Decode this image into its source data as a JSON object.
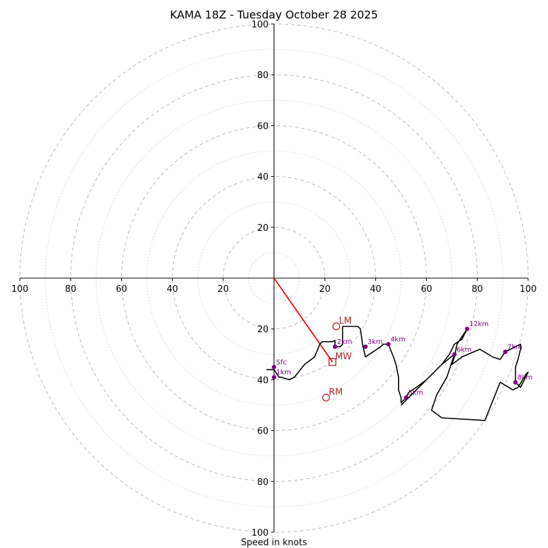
{
  "chart_data": {
    "type": "hodograph",
    "title": "KAMA 18Z - Tuesday October 28 2025",
    "xlabel": "Speed in knots",
    "u_range": [
      -100,
      100
    ],
    "v_range": [
      -100,
      100
    ],
    "tick_labels_x": [
      "100",
      "80",
      "60",
      "40",
      "20",
      "20",
      "40",
      "60",
      "80",
      "100"
    ],
    "tick_values_x": [
      -100,
      -80,
      -60,
      -40,
      -20,
      20,
      40,
      60,
      80,
      100
    ],
    "tick_labels_y": [
      "100",
      "80",
      "60",
      "40",
      "20",
      "20",
      "40",
      "60",
      "80",
      "100"
    ],
    "tick_values_y": [
      100,
      80,
      60,
      40,
      20,
      -20,
      -40,
      -60,
      -80,
      -100
    ],
    "rings_dashed": [
      20,
      40,
      60,
      80,
      100
    ],
    "rings_dotted": [
      10,
      30,
      50,
      70,
      90
    ],
    "colors": {
      "hodograph": "#000000",
      "height_marker": "#800080",
      "storm_motion": "#b22222",
      "mean_wind_vector": "#ff0000",
      "grid": "#bfbfbf"
    },
    "hodograph_trace": [
      [
        -3,
        -36
      ],
      [
        0,
        -36
      ],
      [
        2,
        -39
      ],
      [
        3,
        -39
      ],
      [
        6,
        -40
      ],
      [
        8,
        -39
      ],
      [
        12,
        -34
      ],
      [
        16,
        -31
      ],
      [
        18,
        -26
      ],
      [
        19,
        -25
      ],
      [
        23,
        -25
      ],
      [
        24,
        -24.5
      ],
      [
        24,
        -26
      ],
      [
        24,
        -27
      ],
      [
        26,
        -27
      ],
      [
        27,
        -26
      ],
      [
        27,
        -19
      ],
      [
        28,
        -19
      ],
      [
        33,
        -19
      ],
      [
        34,
        -20
      ],
      [
        35,
        -27
      ],
      [
        36,
        -31
      ],
      [
        39,
        -29
      ],
      [
        42,
        -27
      ],
      [
        43,
        -26
      ],
      [
        45,
        -26
      ],
      [
        47,
        -31
      ],
      [
        48,
        -34
      ],
      [
        49,
        -39
      ],
      [
        49,
        -44
      ],
      [
        50,
        -47
      ],
      [
        50,
        -49
      ],
      [
        52,
        -47
      ],
      [
        53,
        -45
      ],
      [
        56,
        -43
      ],
      [
        60,
        -40
      ],
      [
        63,
        -37
      ],
      [
        66,
        -34
      ],
      [
        69,
        -30
      ],
      [
        71,
        -26
      ],
      [
        74,
        -24
      ],
      [
        76,
        -20
      ],
      [
        72,
        -26
      ],
      [
        71,
        -31
      ],
      [
        70,
        -34
      ],
      [
        74,
        -31
      ],
      [
        81,
        -28
      ],
      [
        86,
        -31
      ],
      [
        89,
        -32
      ],
      [
        91,
        -29
      ],
      [
        97,
        -26
      ],
      [
        97,
        -28
      ],
      [
        96,
        -32
      ],
      [
        95,
        -35
      ],
      [
        95,
        -37
      ],
      [
        95,
        -41
      ],
      [
        97,
        -43
      ],
      [
        100,
        -37
      ],
      [
        99,
        -38
      ],
      [
        96,
        -43
      ],
      [
        94,
        -44
      ],
      [
        89,
        -41
      ],
      [
        83,
        -56
      ],
      [
        66,
        -55
      ],
      [
        62,
        -52
      ],
      [
        64,
        -46
      ],
      [
        68,
        -39
      ],
      [
        71,
        -30
      ],
      [
        66,
        -34
      ],
      [
        60,
        -40
      ],
      [
        56,
        -44
      ],
      [
        50,
        -50
      ]
    ],
    "height_points": [
      {
        "label": "Sfc",
        "u": 0,
        "v": -35
      },
      {
        "label": "1km",
        "u": 0,
        "v": -39
      },
      {
        "label": "2km",
        "u": 24,
        "v": -27
      },
      {
        "label": "3km",
        "u": 36,
        "v": -27
      },
      {
        "label": "4km",
        "u": 45,
        "v": -26
      },
      {
        "label": "5km",
        "u": 52,
        "v": -47
      },
      {
        "label": "6km",
        "u": 71,
        "v": -30
      },
      {
        "label": "7km",
        "u": 91,
        "v": -29
      },
      {
        "label": "8km",
        "u": 95,
        "v": -41
      },
      {
        "label": "12km",
        "u": 76,
        "v": -20
      }
    ],
    "storm_motion": [
      {
        "label": "LM",
        "u": 24.5,
        "v": -19,
        "marker": "circle"
      },
      {
        "label": "MW",
        "u": 23,
        "v": -33,
        "marker": "square"
      },
      {
        "label": "RM",
        "u": 20.5,
        "v": -47,
        "marker": "circle"
      }
    ],
    "mean_wind_vector": {
      "from": [
        0,
        0
      ],
      "to": [
        23,
        -33
      ]
    }
  }
}
